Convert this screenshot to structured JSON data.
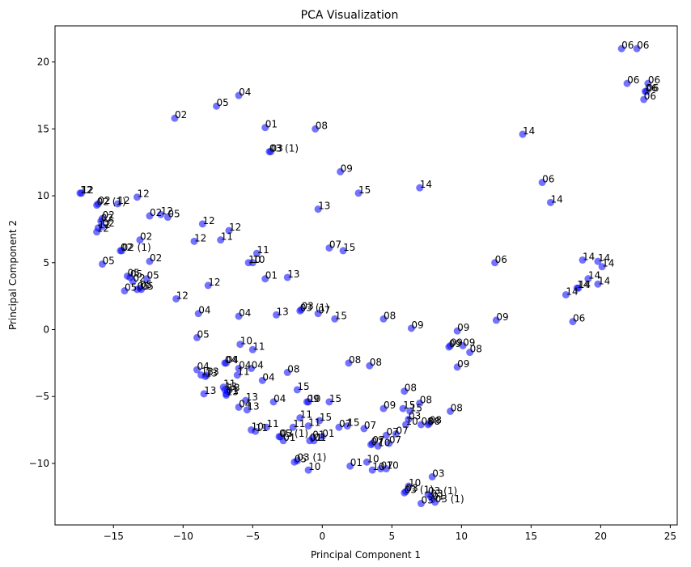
{
  "chart_data": {
    "type": "scatter",
    "title": "PCA Visualization",
    "xlabel": "Principal Component 1",
    "ylabel": "Principal Component 2",
    "xlim": [
      -19.2,
      25.5
    ],
    "ylim": [
      -14.6,
      22.7
    ],
    "xticks": [
      -15,
      -10,
      -5,
      0,
      5,
      10,
      15,
      20,
      25
    ],
    "yticks": [
      -10,
      -5,
      0,
      5,
      10,
      15,
      20
    ],
    "grid": false,
    "marker_color": "#0000ff",
    "marker_alpha": 0.55,
    "points": [
      {
        "x": 21.5,
        "y": 21.0,
        "label": "06"
      },
      {
        "x": 22.6,
        "y": 21.0,
        "label": "06"
      },
      {
        "x": 21.9,
        "y": 18.4,
        "label": "06"
      },
      {
        "x": 23.4,
        "y": 18.4,
        "label": "06"
      },
      {
        "x": 23.2,
        "y": 17.8,
        "label": "06"
      },
      {
        "x": 23.3,
        "y": 17.8,
        "label": "06"
      },
      {
        "x": 23.1,
        "y": 17.2,
        "label": "06"
      },
      {
        "x": -6.0,
        "y": 17.5,
        "label": "04"
      },
      {
        "x": -7.6,
        "y": 16.7,
        "label": "05"
      },
      {
        "x": -10.6,
        "y": 15.8,
        "label": "02"
      },
      {
        "x": -4.1,
        "y": 15.1,
        "label": "01"
      },
      {
        "x": -0.5,
        "y": 15.0,
        "label": "08"
      },
      {
        "x": -3.8,
        "y": 13.3,
        "label": "03 (1)"
      },
      {
        "x": -3.7,
        "y": 13.3,
        "label": "03"
      },
      {
        "x": 14.4,
        "y": 14.6,
        "label": "14"
      },
      {
        "x": 1.3,
        "y": 11.8,
        "label": "09"
      },
      {
        "x": 7.0,
        "y": 10.6,
        "label": "14"
      },
      {
        "x": 15.8,
        "y": 11.0,
        "label": "06"
      },
      {
        "x": 16.4,
        "y": 9.5,
        "label": "14"
      },
      {
        "x": 2.6,
        "y": 10.2,
        "label": "15"
      },
      {
        "x": -0.3,
        "y": 9.0,
        "label": "13"
      },
      {
        "x": -17.4,
        "y": 10.2,
        "label": "12"
      },
      {
        "x": -17.3,
        "y": 10.2,
        "label": "12"
      },
      {
        "x": -16.2,
        "y": 9.3,
        "label": "02 (1)"
      },
      {
        "x": -16.1,
        "y": 9.4,
        "label": "02"
      },
      {
        "x": -14.7,
        "y": 9.4,
        "label": "12"
      },
      {
        "x": -13.3,
        "y": 9.9,
        "label": "12"
      },
      {
        "x": -12.4,
        "y": 8.5,
        "label": "02"
      },
      {
        "x": -11.6,
        "y": 8.6,
        "label": "12"
      },
      {
        "x": -11.1,
        "y": 8.4,
        "label": "05"
      },
      {
        "x": -8.6,
        "y": 7.9,
        "label": "12"
      },
      {
        "x": -15.8,
        "y": 8.3,
        "label": "02"
      },
      {
        "x": -15.9,
        "y": 8.1,
        "label": "02"
      },
      {
        "x": -15.8,
        "y": 7.7,
        "label": "02"
      },
      {
        "x": -16.1,
        "y": 7.6,
        "label": "12"
      },
      {
        "x": -16.2,
        "y": 7.3,
        "label": "12"
      },
      {
        "x": -6.7,
        "y": 7.4,
        "label": "12"
      },
      {
        "x": -7.3,
        "y": 6.7,
        "label": "11"
      },
      {
        "x": -9.2,
        "y": 6.6,
        "label": "12"
      },
      {
        "x": -13.1,
        "y": 6.7,
        "label": "02"
      },
      {
        "x": -14.4,
        "y": 5.9,
        "label": "02 (1)"
      },
      {
        "x": -14.5,
        "y": 5.9,
        "label": "02"
      },
      {
        "x": -4.7,
        "y": 5.7,
        "label": "11"
      },
      {
        "x": 0.5,
        "y": 6.1,
        "label": "07"
      },
      {
        "x": 1.5,
        "y": 5.9,
        "label": "15"
      },
      {
        "x": 12.4,
        "y": 5.0,
        "label": "06"
      },
      {
        "x": 18.7,
        "y": 5.2,
        "label": "14"
      },
      {
        "x": 19.8,
        "y": 5.1,
        "label": "14"
      },
      {
        "x": 20.1,
        "y": 4.7,
        "label": "14"
      },
      {
        "x": -15.8,
        "y": 4.9,
        "label": "05"
      },
      {
        "x": -12.4,
        "y": 5.1,
        "label": "02"
      },
      {
        "x": -5.3,
        "y": 5.0,
        "label": "10"
      },
      {
        "x": -5.0,
        "y": 5.0,
        "label": "10"
      },
      {
        "x": -14.0,
        "y": 4.0,
        "label": "05"
      },
      {
        "x": -13.8,
        "y": 3.9,
        "label": "05"
      },
      {
        "x": -13.6,
        "y": 3.6,
        "label": "02"
      },
      {
        "x": -12.6,
        "y": 3.8,
        "label": "05"
      },
      {
        "x": -14.2,
        "y": 2.9,
        "label": "05"
      },
      {
        "x": -13.3,
        "y": 3.0,
        "label": "05"
      },
      {
        "x": -13.1,
        "y": 3.1,
        "label": "05"
      },
      {
        "x": -13.0,
        "y": 3.0,
        "label": "05"
      },
      {
        "x": -4.1,
        "y": 3.8,
        "label": "01"
      },
      {
        "x": -2.5,
        "y": 3.9,
        "label": "13"
      },
      {
        "x": -8.2,
        "y": 3.3,
        "label": "12"
      },
      {
        "x": 19.1,
        "y": 3.8,
        "label": "14"
      },
      {
        "x": 19.8,
        "y": 3.4,
        "label": "14"
      },
      {
        "x": 18.3,
        "y": 3.1,
        "label": "14"
      },
      {
        "x": 18.4,
        "y": 3.1,
        "label": "14"
      },
      {
        "x": 17.5,
        "y": 2.6,
        "label": "14"
      },
      {
        "x": -10.5,
        "y": 2.3,
        "label": "12"
      },
      {
        "x": -1.6,
        "y": 1.4,
        "label": "03 (1)"
      },
      {
        "x": -1.5,
        "y": 1.5,
        "label": "03"
      },
      {
        "x": -0.3,
        "y": 1.2,
        "label": "07"
      },
      {
        "x": 0.9,
        "y": 0.8,
        "label": "15"
      },
      {
        "x": -3.3,
        "y": 1.1,
        "label": "13"
      },
      {
        "x": -8.9,
        "y": 1.2,
        "label": "04"
      },
      {
        "x": -6.0,
        "y": 1.0,
        "label": "04"
      },
      {
        "x": 4.4,
        "y": 0.8,
        "label": "08"
      },
      {
        "x": 12.5,
        "y": 0.7,
        "label": "09"
      },
      {
        "x": 18.0,
        "y": 0.6,
        "label": "06"
      },
      {
        "x": 6.4,
        "y": 0.1,
        "label": "09"
      },
      {
        "x": 9.7,
        "y": -0.1,
        "label": "09"
      },
      {
        "x": -9.0,
        "y": -0.6,
        "label": "05"
      },
      {
        "x": -5.9,
        "y": -1.1,
        "label": "10"
      },
      {
        "x": -5.0,
        "y": -1.5,
        "label": "11"
      },
      {
        "x": 9.1,
        "y": -1.3,
        "label": "09"
      },
      {
        "x": 9.2,
        "y": -1.2,
        "label": "09"
      },
      {
        "x": 10.1,
        "y": -1.2,
        "label": "09"
      },
      {
        "x": 10.6,
        "y": -1.7,
        "label": "08"
      },
      {
        "x": -7.0,
        "y": -2.5,
        "label": "04"
      },
      {
        "x": -6.9,
        "y": -2.5,
        "label": "04"
      },
      {
        "x": 1.9,
        "y": -2.5,
        "label": "08"
      },
      {
        "x": 3.4,
        "y": -2.7,
        "label": "08"
      },
      {
        "x": 9.7,
        "y": -2.8,
        "label": "09"
      },
      {
        "x": -9.0,
        "y": -3.0,
        "label": "04"
      },
      {
        "x": -6.0,
        "y": -2.9,
        "label": "04"
      },
      {
        "x": -5.1,
        "y": -2.9,
        "label": "04"
      },
      {
        "x": -2.5,
        "y": -3.2,
        "label": "08"
      },
      {
        "x": -8.7,
        "y": -3.4,
        "label": "13"
      },
      {
        "x": -8.4,
        "y": -3.5,
        "label": "13"
      },
      {
        "x": -8.3,
        "y": -3.4,
        "label": "13"
      },
      {
        "x": -6.1,
        "y": -3.4,
        "label": "11"
      },
      {
        "x": -4.3,
        "y": -3.8,
        "label": "04"
      },
      {
        "x": 5.9,
        "y": -4.6,
        "label": "08"
      },
      {
        "x": -1.8,
        "y": -4.5,
        "label": "15"
      },
      {
        "x": -7.1,
        "y": -4.3,
        "label": "11"
      },
      {
        "x": -7.0,
        "y": -4.5,
        "label": "13"
      },
      {
        "x": -6.8,
        "y": -4.6,
        "label": "13"
      },
      {
        "x": -6.9,
        "y": -4.8,
        "label": "01"
      },
      {
        "x": -8.5,
        "y": -4.8,
        "label": "13"
      },
      {
        "x": -6.9,
        "y": -4.9,
        "label": "13"
      },
      {
        "x": -5.5,
        "y": -5.3,
        "label": "13"
      },
      {
        "x": -3.5,
        "y": -5.4,
        "label": "04"
      },
      {
        "x": -1.1,
        "y": -5.4,
        "label": "09"
      },
      {
        "x": -1.0,
        "y": -5.4,
        "label": "10"
      },
      {
        "x": 0.5,
        "y": -5.4,
        "label": "15"
      },
      {
        "x": 7.0,
        "y": -5.5,
        "label": "08"
      },
      {
        "x": -6.0,
        "y": -5.8,
        "label": "04"
      },
      {
        "x": -5.4,
        "y": -6.0,
        "label": "13"
      },
      {
        "x": 4.4,
        "y": -5.9,
        "label": "09"
      },
      {
        "x": 5.8,
        "y": -5.9,
        "label": "15"
      },
      {
        "x": 6.3,
        "y": -6.1,
        "label": "15"
      },
      {
        "x": 9.2,
        "y": -6.1,
        "label": "08"
      },
      {
        "x": 6.2,
        "y": -6.7,
        "label": "03"
      },
      {
        "x": 7.1,
        "y": -7.1,
        "label": "08"
      },
      {
        "x": 7.6,
        "y": -7.1,
        "label": "08"
      },
      {
        "x": 7.7,
        "y": -7.0,
        "label": "08"
      },
      {
        "x": 6.0,
        "y": -7.1,
        "label": "10"
      },
      {
        "x": -1.6,
        "y": -6.6,
        "label": "11"
      },
      {
        "x": -0.2,
        "y": -6.8,
        "label": "15"
      },
      {
        "x": -5.1,
        "y": -7.5,
        "label": "10"
      },
      {
        "x": -4.8,
        "y": -7.6,
        "label": "11"
      },
      {
        "x": -4.0,
        "y": -7.3,
        "label": "11"
      },
      {
        "x": -2.1,
        "y": -7.3,
        "label": "11"
      },
      {
        "x": -1.0,
        "y": -7.2,
        "label": "11"
      },
      {
        "x": 1.2,
        "y": -7.3,
        "label": "07"
      },
      {
        "x": 1.8,
        "y": -7.2,
        "label": "15"
      },
      {
        "x": 3.0,
        "y": -7.4,
        "label": "07"
      },
      {
        "x": 4.6,
        "y": -7.9,
        "label": "07"
      },
      {
        "x": 5.3,
        "y": -7.8,
        "label": "07"
      },
      {
        "x": -3.1,
        "y": -8.0,
        "label": "05 (1)"
      },
      {
        "x": -3.0,
        "y": -8.0,
        "label": "03"
      },
      {
        "x": -2.8,
        "y": -8.3,
        "label": "01"
      },
      {
        "x": -0.9,
        "y": -8.3,
        "label": "01"
      },
      {
        "x": -0.7,
        "y": -8.1,
        "label": "01"
      },
      {
        "x": -0.6,
        "y": -8.3,
        "label": "01"
      },
      {
        "x": 0.0,
        "y": -8.0,
        "label": "01"
      },
      {
        "x": 3.5,
        "y": -8.6,
        "label": "07"
      },
      {
        "x": 3.6,
        "y": -8.5,
        "label": "07"
      },
      {
        "x": 4.0,
        "y": -8.7,
        "label": "10"
      },
      {
        "x": 4.8,
        "y": -8.5,
        "label": "07"
      },
      {
        "x": -1.8,
        "y": -9.8,
        "label": "03 (1)"
      },
      {
        "x": -2.0,
        "y": -9.9,
        "label": "05"
      },
      {
        "x": -1.0,
        "y": -10.5,
        "label": "10"
      },
      {
        "x": 2.0,
        "y": -10.2,
        "label": "01"
      },
      {
        "x": 3.2,
        "y": -9.9,
        "label": "10"
      },
      {
        "x": 3.6,
        "y": -10.5,
        "label": "10"
      },
      {
        "x": 4.2,
        "y": -10.4,
        "label": "07"
      },
      {
        "x": 4.6,
        "y": -10.4,
        "label": "10"
      },
      {
        "x": 7.9,
        "y": -11.0,
        "label": "03"
      },
      {
        "x": 6.2,
        "y": -11.7,
        "label": "10"
      },
      {
        "x": 5.9,
        "y": -12.2,
        "label": "03 (1)"
      },
      {
        "x": 6.0,
        "y": -12.1,
        "label": "03"
      },
      {
        "x": 7.6,
        "y": -12.3,
        "label": "03 (1)"
      },
      {
        "x": 7.8,
        "y": -12.5,
        "label": "03"
      },
      {
        "x": 7.1,
        "y": -13.0,
        "label": "03"
      },
      {
        "x": 8.1,
        "y": -12.9,
        "label": "03 (1)"
      },
      {
        "x": 7.9,
        "y": -12.7,
        "label": "01"
      }
    ]
  }
}
